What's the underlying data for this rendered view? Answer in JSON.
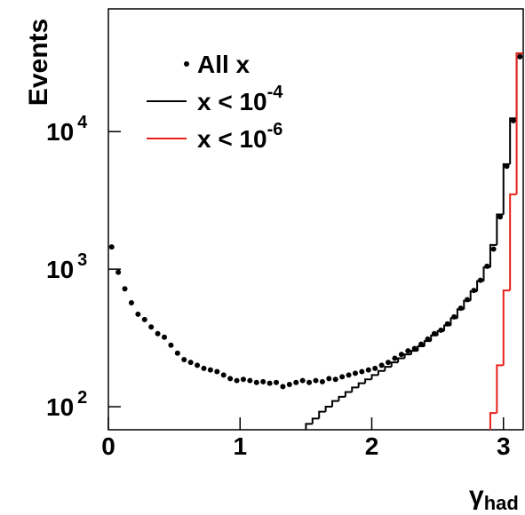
{
  "chart_data": {
    "type": "histogram",
    "y_label": "Events",
    "x_label": "γ",
    "x_label_sub": "had",
    "bins": [
      0,
      0.05,
      0.1,
      0.15,
      0.2,
      0.25,
      0.3,
      0.35,
      0.4,
      0.45,
      0.5,
      0.55,
      0.6,
      0.65,
      0.7,
      0.75,
      0.8,
      0.85,
      0.9,
      0.95,
      1,
      1.05,
      1.1,
      1.15,
      1.2,
      1.25,
      1.3,
      1.35,
      1.4,
      1.45,
      1.5,
      1.55,
      1.6,
      1.65,
      1.7,
      1.75,
      1.8,
      1.85,
      1.9,
      1.95,
      2,
      2.05,
      2.1,
      2.15,
      2.2,
      2.25,
      2.3,
      2.35,
      2.4,
      2.45,
      2.5,
      2.55,
      2.6,
      2.65,
      2.7,
      2.75,
      2.8,
      2.85,
      2.9,
      2.95,
      3,
      3.05,
      3.1,
      3.15
    ],
    "series": [
      {
        "name": "All x",
        "style": "points",
        "color": "#000000",
        "values": [
          1450,
          950,
          720,
          570,
          470,
          430,
          380,
          340,
          320,
          280,
          245,
          220,
          210,
          200,
          190,
          185,
          180,
          170,
          160,
          155,
          158,
          155,
          150,
          152,
          148,
          150,
          140,
          145,
          150,
          155,
          150,
          155,
          152,
          160,
          158,
          165,
          170,
          175,
          180,
          185,
          190,
          200,
          210,
          225,
          240,
          255,
          265,
          285,
          310,
          340,
          360,
          400,
          450,
          520,
          600,
          700,
          830,
          1050,
          1400,
          2400,
          5600,
          12000,
          35000
        ]
      },
      {
        "name": "x < 10",
        "name_sup": "-4",
        "style": "step",
        "color": "#000000",
        "values": [
          null,
          null,
          null,
          null,
          null,
          null,
          null,
          null,
          null,
          null,
          null,
          null,
          null,
          null,
          null,
          null,
          null,
          null,
          null,
          null,
          null,
          null,
          null,
          null,
          null,
          null,
          null,
          null,
          null,
          60,
          75,
          82,
          92,
          100,
          110,
          118,
          128,
          138,
          148,
          158,
          170,
          182,
          195,
          210,
          225,
          240,
          255,
          275,
          300,
          330,
          355,
          390,
          440,
          510,
          590,
          690,
          820,
          1030,
          1500,
          2500,
          5800,
          12500,
          37000
        ]
      },
      {
        "name": "x < 10",
        "name_sup": "-6",
        "style": "step",
        "color": "#e8201c",
        "values": [
          null,
          null,
          null,
          null,
          null,
          null,
          null,
          null,
          null,
          null,
          null,
          null,
          null,
          null,
          null,
          null,
          null,
          null,
          null,
          null,
          null,
          null,
          null,
          null,
          null,
          null,
          null,
          null,
          null,
          null,
          null,
          null,
          null,
          null,
          null,
          null,
          null,
          null,
          null,
          null,
          null,
          null,
          null,
          null,
          null,
          null,
          null,
          null,
          null,
          null,
          null,
          null,
          null,
          null,
          null,
          null,
          null,
          null,
          90,
          200,
          700,
          3500,
          37000
        ]
      }
    ],
    "xlim": [
      0,
      3.15
    ],
    "xticks": [
      0,
      1,
      2,
      3
    ],
    "ylim": [
      68,
      78000
    ],
    "log_y": true,
    "yticks": [
      {
        "value": 100,
        "label": "10",
        "sup": "2"
      },
      {
        "value": 1000,
        "label": "10",
        "sup": "3"
      },
      {
        "value": 10000,
        "label": "10",
        "sup": "4"
      }
    ]
  }
}
